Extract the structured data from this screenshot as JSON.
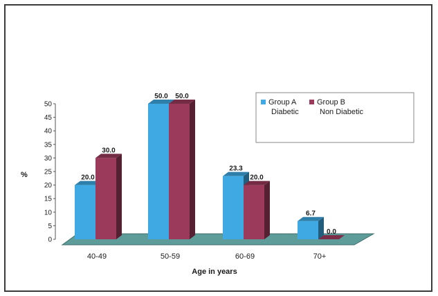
{
  "chart_data": {
    "type": "bar",
    "title": "",
    "categories": [
      "40-49",
      "50-59",
      "60-69",
      "70+"
    ],
    "series": [
      {
        "name": "Group A Diabetic",
        "values": [
          20.0,
          50.0,
          23.3,
          6.7
        ],
        "color": "#3fa9e4"
      },
      {
        "name": "Group B Non Diabetic",
        "values": [
          30.0,
          50.0,
          20.0,
          0.0
        ],
        "color": "#9b3a5b"
      }
    ],
    "data_labels": [
      [
        "20.0",
        "50.0",
        "23.3",
        "6.7"
      ],
      [
        "30.0",
        "50.0",
        "20.0",
        "0.0"
      ]
    ],
    "xlabel": "Age in years",
    "ylabel": "%",
    "ylim": [
      0,
      50
    ],
    "yticks": [
      "0",
      "5",
      "10",
      "15",
      "20",
      "25",
      "30",
      "35",
      "40",
      "45",
      "50"
    ],
    "legend": {
      "placement": "top-right",
      "items": [
        {
          "line1": "Group A",
          "line2": "Diabetic"
        },
        {
          "line1": "Group B",
          "line2": "Non Diabetic"
        }
      ]
    },
    "grid": false,
    "style": "3d"
  }
}
